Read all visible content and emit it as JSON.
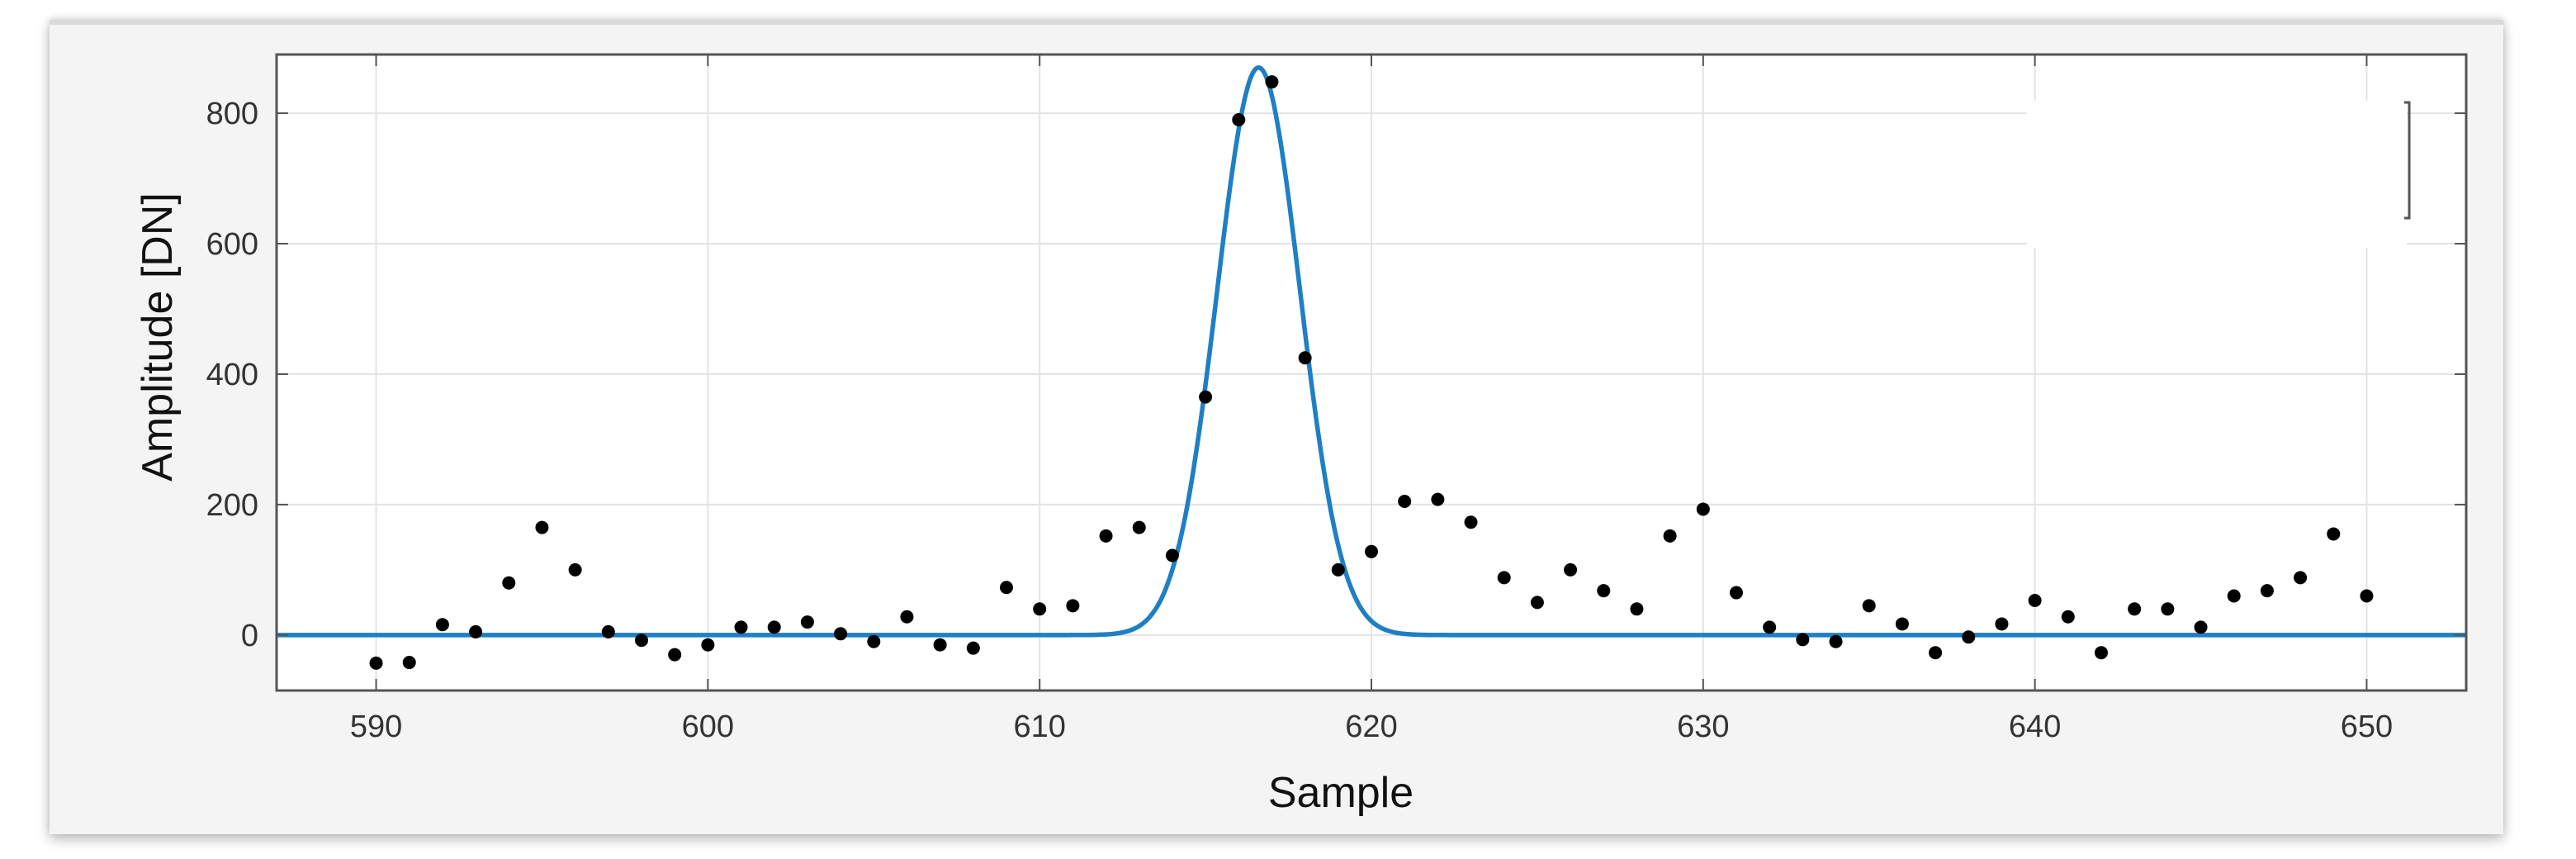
{
  "chart_data": {
    "type": "scatter",
    "title": "",
    "xlabel": "Sample",
    "ylabel": "Amplitude [DN]",
    "xlim": [
      587,
      653
    ],
    "ylim": [
      -85,
      890
    ],
    "x_ticks": [
      590,
      600,
      610,
      620,
      630,
      640,
      650
    ],
    "y_ticks": [
      0,
      200,
      400,
      600,
      800
    ],
    "grid": true,
    "legend": "top-right (empty)",
    "colors": {
      "fit": "#1f7fc4",
      "points": "#000000",
      "axes": "#555555",
      "grid": "#e3e3e3"
    },
    "series": [
      {
        "type": "scatter",
        "x": [
          590,
          591,
          592,
          593,
          594,
          595,
          596,
          597,
          598,
          599,
          600,
          601,
          602,
          603,
          604,
          605,
          606,
          607,
          608,
          609,
          610,
          611,
          612,
          613,
          614,
          615,
          616,
          617,
          618,
          619,
          620,
          621,
          622,
          623,
          624,
          625,
          626,
          627,
          628,
          629,
          630,
          631,
          632,
          633,
          634,
          635,
          636,
          637,
          638,
          639,
          640,
          641,
          642,
          643,
          644,
          645,
          646,
          647,
          648,
          649,
          650
        ],
        "y": [
          -43,
          -42,
          16,
          5,
          80,
          165,
          100,
          5,
          -8,
          -30,
          -15,
          12,
          12,
          20,
          2,
          -10,
          28,
          -15,
          -20,
          73,
          40,
          45,
          152,
          165,
          122,
          365,
          790,
          848,
          425,
          100,
          128,
          205,
          208,
          173,
          88,
          50,
          100,
          68,
          40,
          152,
          193,
          65,
          12,
          -7,
          -10,
          45,
          17,
          -27,
          -3,
          17,
          53,
          28,
          -27,
          40,
          40,
          12,
          60,
          68,
          88,
          155,
          60
        ]
      },
      {
        "type": "line",
        "model": "gaussian",
        "amplitude": 870,
        "center": 616.6,
        "sigma": 1.25,
        "baseline": 0
      }
    ]
  }
}
